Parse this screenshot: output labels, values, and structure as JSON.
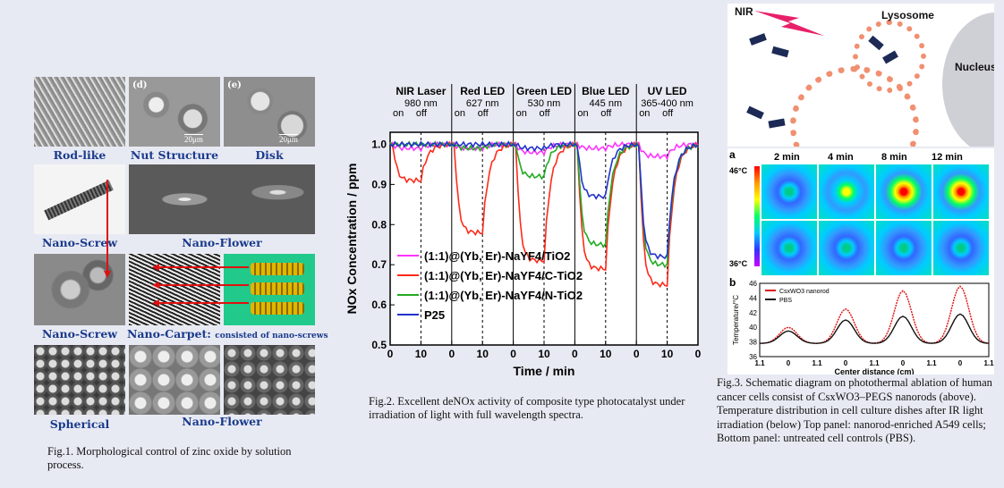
{
  "fig1": {
    "labels": {
      "rod_like": "Rod-like",
      "nut_structure": "Nut Structure",
      "disk": "Disk",
      "nano_screw_1": "Nano-Screw",
      "nano_flower_1": "Nano-Flower",
      "nano_screw_2": "Nano-Screw",
      "nano_carpet": "Nano-Carpet:",
      "nano_carpet_note": "consisted of nano-screws",
      "spherical": "Spherical",
      "nano_flower_2": "Nano-Flower",
      "panel_d": "(d)",
      "panel_e": "(e)",
      "scale_1": "20μm",
      "scale_2": "20μm"
    },
    "caption": "Fig.1. Morphological control of zinc oxide by solution process."
  },
  "fig2": {
    "chart_data": {
      "type": "line",
      "ylabel": "NOx Concentration / ppm",
      "xlabel": "Time / min",
      "ylim": [
        0.5,
        1.03
      ],
      "yticks": [
        "0.5",
        "0.6",
        "0.7",
        "0.8",
        "0.9",
        "1.0"
      ],
      "segments": [
        {
          "name": "NIR Laser",
          "wavelength": "980 nm"
        },
        {
          "name": "Red LED",
          "wavelength": "627 nm"
        },
        {
          "name": "Green LED",
          "wavelength": "530 nm"
        },
        {
          "name": "Blue LED",
          "wavelength": "445 nm"
        },
        {
          "name": "UV LED",
          "wavelength": "365-400 nm"
        }
      ],
      "on_label": "on",
      "off_label": "off",
      "xtick_labels": [
        "0",
        "10",
        "0",
        "10",
        "0",
        "10",
        "0",
        "10",
        "0",
        "10",
        "0"
      ],
      "legend": [
        "(1:1)@(Yb, Er)-NaYF4/TiO2",
        "(1:1)@(Yb, Er)-NaYF4/C-TiO2",
        "(1:1)@(Yb, Er)-NaYF4/N-TiO2",
        "P25"
      ],
      "series": [
        {
          "name": "(1:1)@(Yb, Er)-NaYF4/TiO2",
          "color": "#ff33ff",
          "minima": [
            0.99,
            0.99,
            0.98,
            0.99,
            0.97
          ]
        },
        {
          "name": "(1:1)@(Yb, Er)-NaYF4/C-TiO2",
          "color": "#ff2a1a",
          "minima": [
            0.91,
            0.78,
            0.71,
            0.69,
            0.65
          ]
        },
        {
          "name": "(1:1)@(Yb, Er)-NaYF4/N-TiO2",
          "color": "#22aa22",
          "minima": [
            1.0,
            0.99,
            0.92,
            0.75,
            0.7
          ]
        },
        {
          "name": "P25",
          "color": "#2233cc",
          "minima": [
            1.0,
            1.0,
            0.99,
            0.87,
            0.72
          ]
        }
      ]
    },
    "caption": "Fig.2. Excellent deNOx activity of composite type photocatalyst under irradiation of light with full wavelength spectra."
  },
  "fig3": {
    "labels": {
      "nir": "NIR",
      "lysosome": "Lysosome",
      "nucleus": "Nucleus",
      "panel_a": "a",
      "panel_b": "b",
      "time_1": "2 min",
      "time_2": "4 min",
      "time_3": "8 min",
      "time_4": "12 min",
      "temp_high": "46°C",
      "temp_low": "36°C"
    },
    "chart_data": {
      "type": "line",
      "ylabel": "Temperature/°C",
      "xlabel": "Center distance (cm)",
      "yticks": [
        "36",
        "38",
        "40",
        "42",
        "44",
        "46"
      ],
      "xtick_labels": [
        "1.1",
        "0",
        "1.1",
        "0",
        "1.1",
        "0",
        "1.1",
        "0",
        "1.1"
      ],
      "legend": [
        "CsxWO3 nanorod",
        "PBS"
      ],
      "series": [
        {
          "name": "CsxWO3 nanorod",
          "color": "#e01010",
          "peaks": [
            40.0,
            42.5,
            45.0,
            45.6
          ]
        },
        {
          "name": "PBS",
          "color": "#111111",
          "peaks": [
            39.5,
            41.0,
            41.5,
            41.8
          ]
        }
      ],
      "ylim": [
        36,
        46
      ]
    },
    "caption": "Fig.3. Schematic diagram on photothermal ablation of human cancer cells consist of CsxWO3–PEGS nanorods (above). Temperature distribution in cell culture dishes after IR light irradiation (below) Top panel: nanorod-enriched A549 cells; Bottom panel: untreated cell controls (PBS)."
  }
}
